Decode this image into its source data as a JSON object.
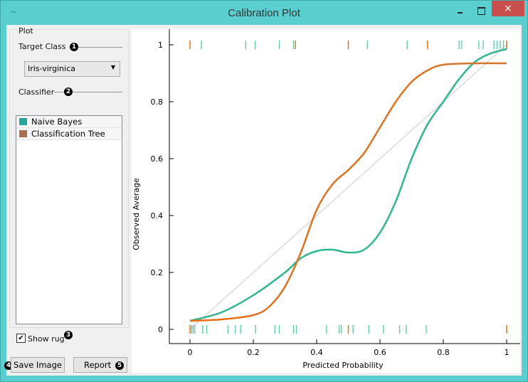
{
  "window": {
    "title": "Calibration Plot",
    "app_icon": "curve-icon",
    "close": "×"
  },
  "controls": {
    "group_title": "Plot",
    "target_class_label": "Target Class",
    "target_class_value": "Iris-virginica",
    "classifier_label": "Classifier",
    "classifiers": [
      {
        "name": "Naive Bayes",
        "color": "#26a69a"
      },
      {
        "name": "Classification Tree",
        "color": "#a8704f"
      }
    ],
    "show_rug_label": "Show rug",
    "show_rug_checked": true,
    "save_image": "Save Image",
    "report": "Report",
    "callouts": [
      "1",
      "2",
      "3",
      "4",
      "5"
    ]
  },
  "chart_data": {
    "type": "line",
    "xlabel": "Predicted Probability",
    "ylabel": "Observed Average",
    "xlim": [
      0,
      1
    ],
    "ylim": [
      0,
      1
    ],
    "xticks": [
      "0",
      "0.2",
      "0.4",
      "0.6",
      "0.8",
      "1"
    ],
    "yticks": [
      "0",
      "0.2",
      "0.4",
      "0.6",
      "0.8",
      "1"
    ],
    "diagonal": true,
    "series": [
      {
        "name": "Naive Bayes",
        "color": "#1fb58a",
        "x": [
          0,
          0.1,
          0.2,
          0.3,
          0.35,
          0.4,
          0.45,
          0.5,
          0.55,
          0.6,
          0.65,
          0.7,
          0.75,
          0.8,
          0.85,
          0.9,
          0.95,
          1
        ],
        "y": [
          0.03,
          0.06,
          0.12,
          0.2,
          0.25,
          0.275,
          0.28,
          0.27,
          0.28,
          0.34,
          0.45,
          0.6,
          0.72,
          0.8,
          0.88,
          0.94,
          0.97,
          0.985
        ],
        "rug_pos": [
          0.036,
          0.176,
          0.206,
          0.282,
          0.327,
          0.56,
          0.686,
          0.85,
          0.858,
          0.912,
          0.926,
          0.96,
          0.97,
          0.98,
          0.99
        ],
        "rug_neg": [
          0.005,
          0.01,
          0.015,
          0.04,
          0.053,
          0.12,
          0.143,
          0.16,
          0.207,
          0.268,
          0.282,
          0.327,
          0.336,
          0.431,
          0.471,
          0.478,
          0.515,
          0.565,
          0.611,
          0.662,
          0.683,
          0.746
        ]
      },
      {
        "name": "Classification Tree",
        "color": "#e3690f",
        "x": [
          0,
          0.1,
          0.2,
          0.25,
          0.3,
          0.35,
          0.4,
          0.45,
          0.5,
          0.55,
          0.6,
          0.65,
          0.7,
          0.75,
          0.8,
          0.9,
          1
        ],
        "y": [
          0.03,
          0.035,
          0.05,
          0.08,
          0.15,
          0.27,
          0.42,
          0.51,
          0.56,
          0.62,
          0.71,
          0.8,
          0.87,
          0.91,
          0.93,
          0.935,
          0.935
        ],
        "rug_pos": [
          0,
          0.333,
          0.5,
          0.75,
          1
        ],
        "rug_neg": [
          0,
          0.5,
          1
        ]
      }
    ]
  }
}
